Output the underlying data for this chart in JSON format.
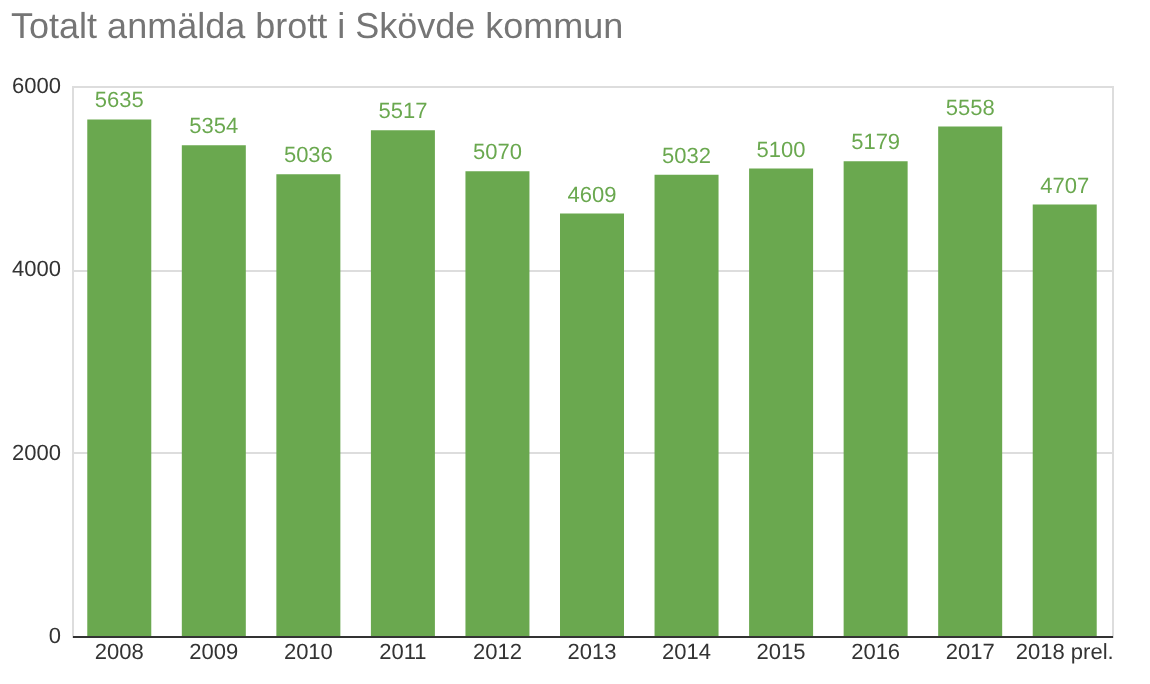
{
  "chart_data": {
    "type": "bar",
    "title": "Totalt anmälda brott i Skövde kommun",
    "categories": [
      "2008",
      "2009",
      "2010",
      "2011",
      "2012",
      "2013",
      "2014",
      "2015",
      "2016",
      "2017",
      "2018 prel."
    ],
    "values": [
      5635,
      5354,
      5036,
      5517,
      5070,
      4609,
      5032,
      5100,
      5179,
      5558,
      4707
    ],
    "color": "#6aa84f",
    "ylim": [
      0,
      6000
    ],
    "yticks": [
      0,
      2000,
      4000,
      6000
    ],
    "grid": "y",
    "data_labels": true
  }
}
